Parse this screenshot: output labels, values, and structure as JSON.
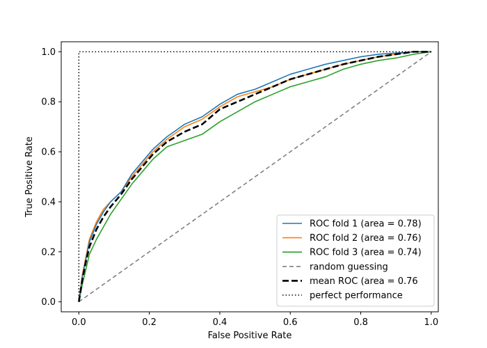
{
  "chart_data": {
    "type": "line",
    "title": "",
    "xlabel": "False Positive Rate",
    "ylabel": "True Positive Rate",
    "xlim": [
      -0.05,
      1.02
    ],
    "ylim": [
      -0.04,
      1.04
    ],
    "xticks": [
      0.0,
      0.2,
      0.4,
      0.6,
      0.8,
      1.0
    ],
    "yticks": [
      0.0,
      0.2,
      0.4,
      0.6,
      0.8,
      1.0
    ],
    "xtick_labels": [
      "0.0",
      "0.2",
      "0.4",
      "0.6",
      "0.8",
      "1.0"
    ],
    "ytick_labels": [
      "0.0",
      "0.2",
      "0.4",
      "0.6",
      "0.8",
      "1.0"
    ],
    "grid": false,
    "legend_position": "lower-right",
    "series": [
      {
        "name": "ROC fold 1 (area = 0.78)",
        "color": "#1f77b4",
        "style": "solid",
        "x": [
          0.0,
          0.01,
          0.02,
          0.03,
          0.05,
          0.07,
          0.09,
          0.12,
          0.15,
          0.18,
          0.21,
          0.25,
          0.3,
          0.35,
          0.4,
          0.45,
          0.5,
          0.55,
          0.6,
          0.65,
          0.7,
          0.75,
          0.8,
          0.85,
          0.9,
          0.95,
          1.0
        ],
        "y": [
          0.0,
          0.1,
          0.17,
          0.24,
          0.31,
          0.36,
          0.4,
          0.44,
          0.51,
          0.56,
          0.61,
          0.66,
          0.71,
          0.74,
          0.79,
          0.83,
          0.85,
          0.88,
          0.91,
          0.93,
          0.95,
          0.965,
          0.98,
          0.99,
          0.995,
          1.0,
          1.0
        ]
      },
      {
        "name": "ROC fold 2 (area = 0.76)",
        "color": "#ff7f0e",
        "style": "solid",
        "x": [
          0.0,
          0.01,
          0.02,
          0.03,
          0.05,
          0.07,
          0.09,
          0.12,
          0.15,
          0.18,
          0.21,
          0.25,
          0.3,
          0.35,
          0.4,
          0.45,
          0.5,
          0.55,
          0.6,
          0.65,
          0.7,
          0.75,
          0.8,
          0.85,
          0.9,
          0.95,
          1.0
        ],
        "y": [
          0.0,
          0.11,
          0.18,
          0.25,
          0.32,
          0.37,
          0.4,
          0.44,
          0.5,
          0.55,
          0.6,
          0.65,
          0.7,
          0.73,
          0.78,
          0.82,
          0.84,
          0.86,
          0.89,
          0.91,
          0.93,
          0.95,
          0.965,
          0.98,
          0.99,
          1.0,
          1.0
        ]
      },
      {
        "name": "ROC fold 3 (area = 0.74)",
        "color": "#2ca02c",
        "style": "solid",
        "x": [
          0.0,
          0.01,
          0.02,
          0.03,
          0.05,
          0.07,
          0.09,
          0.12,
          0.15,
          0.18,
          0.21,
          0.25,
          0.3,
          0.35,
          0.4,
          0.45,
          0.5,
          0.55,
          0.6,
          0.65,
          0.7,
          0.75,
          0.8,
          0.85,
          0.9,
          0.95,
          1.0
        ],
        "y": [
          0.0,
          0.07,
          0.13,
          0.19,
          0.25,
          0.3,
          0.35,
          0.41,
          0.47,
          0.52,
          0.57,
          0.62,
          0.645,
          0.67,
          0.72,
          0.76,
          0.8,
          0.83,
          0.86,
          0.88,
          0.9,
          0.93,
          0.95,
          0.965,
          0.975,
          0.99,
          1.0
        ]
      },
      {
        "name": "random guessing",
        "color": "#808080",
        "style": "dashed",
        "x": [
          0.0,
          1.0
        ],
        "y": [
          0.0,
          1.0
        ]
      },
      {
        "name": "mean ROC (area = 0.76",
        "color": "#000000",
        "style": "dashed-bold",
        "x": [
          0.0,
          0.01,
          0.02,
          0.03,
          0.05,
          0.07,
          0.09,
          0.12,
          0.15,
          0.18,
          0.21,
          0.25,
          0.3,
          0.35,
          0.4,
          0.45,
          0.5,
          0.55,
          0.6,
          0.65,
          0.7,
          0.75,
          0.8,
          0.85,
          0.9,
          0.95,
          1.0
        ],
        "y": [
          0.0,
          0.09,
          0.16,
          0.22,
          0.29,
          0.34,
          0.38,
          0.43,
          0.49,
          0.54,
          0.59,
          0.64,
          0.68,
          0.71,
          0.77,
          0.8,
          0.83,
          0.86,
          0.89,
          0.91,
          0.93,
          0.95,
          0.965,
          0.98,
          0.99,
          1.0,
          1.0
        ]
      },
      {
        "name": "perfect performance",
        "color": "#000000",
        "style": "dotted",
        "x": [
          0.0,
          0.0,
          1.0
        ],
        "y": [
          0.0,
          1.0,
          1.0
        ]
      }
    ]
  }
}
